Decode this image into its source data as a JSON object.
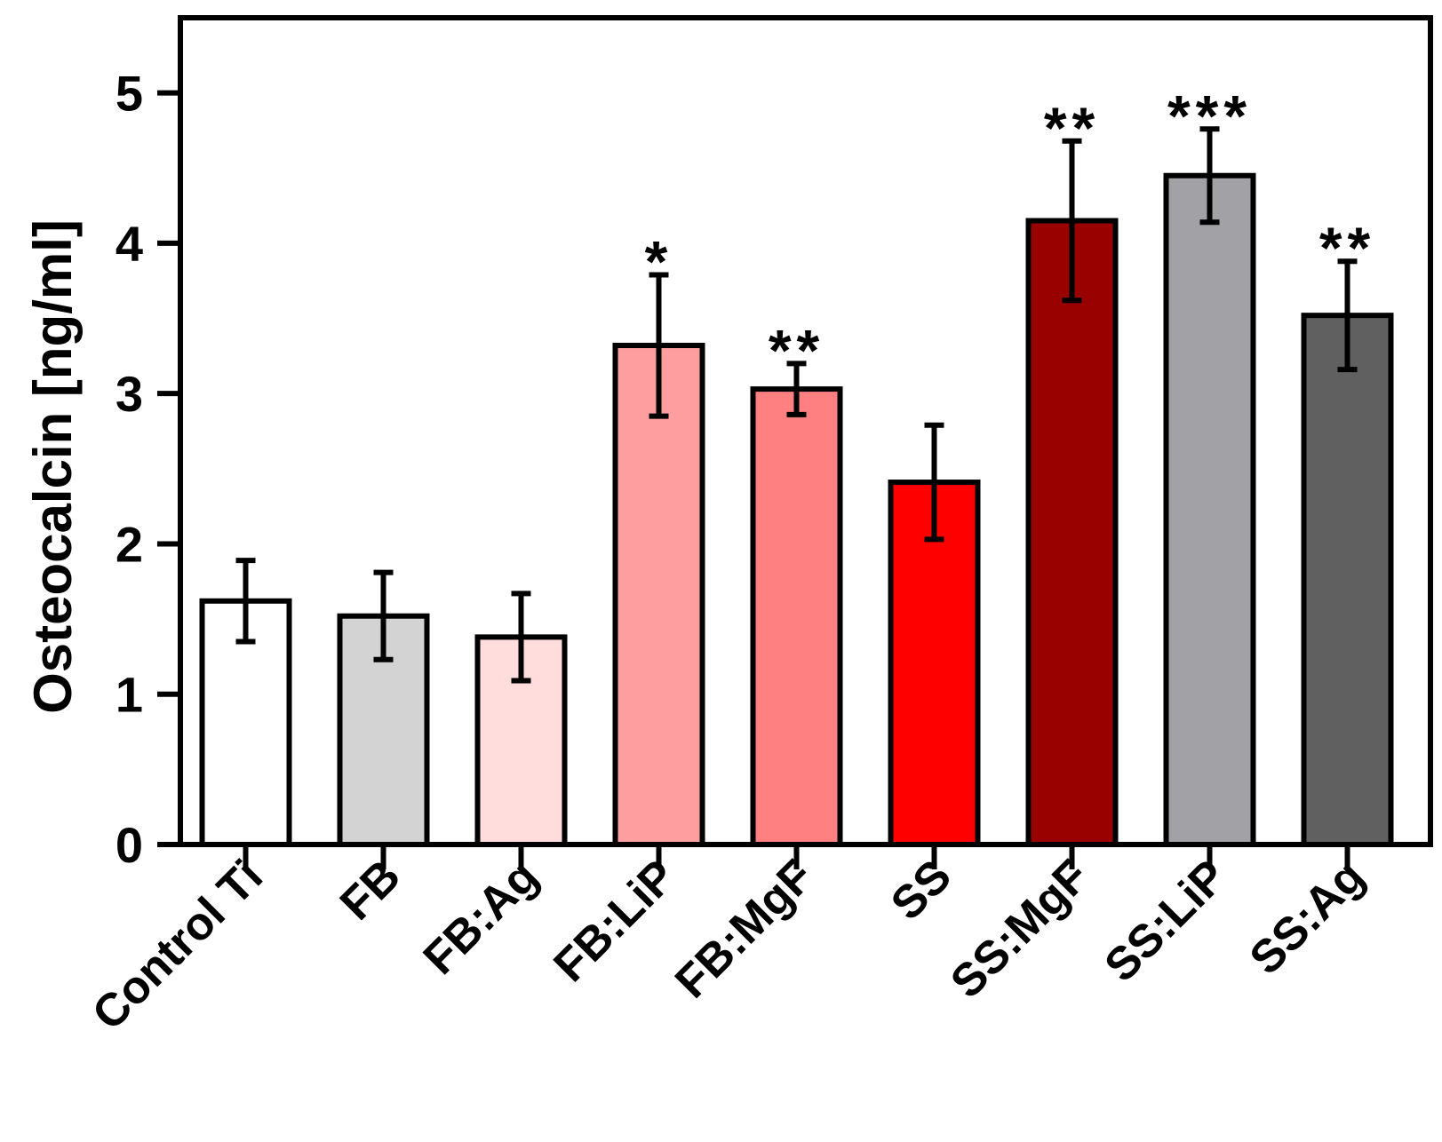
{
  "chart_data": {
    "type": "bar",
    "title": "",
    "xlabel": "",
    "ylabel": "Osteocalcin [ng/ml]",
    "ylim": [
      0,
      5.5
    ],
    "yticks": [
      0,
      1,
      2,
      3,
      4,
      5
    ],
    "grid": false,
    "categories": [
      "Control Ti",
      "FB",
      "FB:Ag",
      "FB:LiP",
      "FB:MgF",
      "SS",
      "SS:MgF",
      "SS:LiP",
      "SS:Ag"
    ],
    "values": [
      1.62,
      1.52,
      1.38,
      3.32,
      3.03,
      2.41,
      4.15,
      4.45,
      3.52
    ],
    "errors": [
      0.27,
      0.29,
      0.29,
      0.47,
      0.17,
      0.38,
      0.53,
      0.31,
      0.36
    ],
    "significance": [
      "",
      "",
      "",
      "*",
      "**",
      "",
      "**",
      "***",
      "**"
    ],
    "bar_colors": [
      "#ffffff",
      "#d3d3d3",
      "#ffdddd",
      "#ff9e9e",
      "#ff8080",
      "#ff0000",
      "#990000",
      "#a1a1a6",
      "#606060"
    ]
  }
}
